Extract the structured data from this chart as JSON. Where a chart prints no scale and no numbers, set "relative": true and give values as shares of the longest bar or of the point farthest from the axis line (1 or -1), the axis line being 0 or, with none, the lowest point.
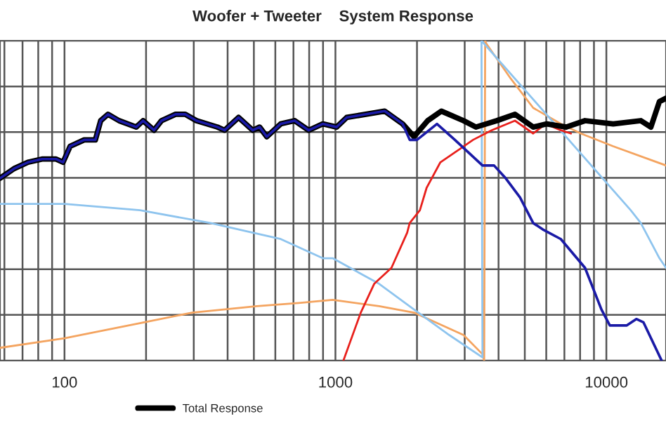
{
  "chart_data": {
    "type": "line",
    "title": "Woofer + Tweeter    System Response",
    "relative": true,
    "log": "x",
    "xlim": [
      57.8,
      16600
    ],
    "xticks": [
      100,
      1000,
      10000
    ],
    "grid": true,
    "legend": "bottom",
    "line_style": "solid",
    "marker": "none",
    "series": [
      {
        "color": "#f4a460",
        "x": [
          57.8,
          100,
          197,
          296,
          513,
          731,
          977,
          1450,
          1950,
          2970,
          3490,
          3540,
          3570,
          3610,
          4450,
          5370,
          6790,
          8050,
          10600,
          16600
        ],
        "values": [
          0.04,
          0.07,
          0.12,
          0.15,
          0.17,
          0.18,
          0.19,
          0.17,
          0.15,
          0.08,
          0.02,
          0,
          1.0,
          0.99,
          0.88,
          0.79,
          0.74,
          0.71,
          0.67,
          0.61
        ]
      },
      {
        "color": "#8ec4ee",
        "x": [
          57.8,
          100,
          190,
          346,
          495,
          628,
          898,
          977,
          1450,
          1950,
          2630,
          3490,
          3460,
          12300,
          13400,
          15700,
          16600
        ],
        "values": [
          0.49,
          0.49,
          0.47,
          0.43,
          0.4,
          0.38,
          0.32,
          0.32,
          0.24,
          0.16,
          0.08,
          0.01,
          1.0,
          0.47,
          0.43,
          0.32,
          0.29
        ]
      },
      {
        "color": "#e8201c",
        "x": [
          1070,
          1240,
          1390,
          1610,
          1840,
          1880,
          2050,
          2170,
          2440,
          2860,
          3220,
          3770,
          4600,
          5370,
          5960,
          6790,
          7400
        ],
        "values": [
          0,
          0.15,
          0.24,
          0.29,
          0.4,
          0.43,
          0.47,
          0.54,
          0.62,
          0.66,
          0.69,
          0.72,
          0.75,
          0.71,
          0.74,
          0.72,
          0.71
        ]
      },
      {
        "color": "#1a1aa6",
        "x": [
          57.8,
          65.1,
          73.3,
          82.6,
          93.1,
          98.8,
          104.9,
          118.2,
          130,
          136,
          144.7,
          159,
          184,
          195,
          214,
          228,
          257,
          279,
          307,
          367,
          390,
          439,
          495,
          525,
          558,
          628,
          707,
          797,
          898,
          1010,
          1100,
          1520,
          1770,
          1880,
          2000,
          2370,
          2760,
          3490,
          3850,
          4250,
          4800,
          5370,
          5830,
          6790,
          8340,
          9590,
          10300,
          11900,
          12900,
          13700,
          16000
        ],
        "values": [
          0.57,
          0.6,
          0.62,
          0.63,
          0.63,
          0.62,
          0.67,
          0.69,
          0.69,
          0.75,
          0.77,
          0.75,
          0.73,
          0.75,
          0.72,
          0.75,
          0.77,
          0.77,
          0.75,
          0.73,
          0.72,
          0.76,
          0.72,
          0.73,
          0.7,
          0.74,
          0.75,
          0.72,
          0.74,
          0.73,
          0.76,
          0.78,
          0.74,
          0.69,
          0.69,
          0.74,
          0.69,
          0.61,
          0.61,
          0.57,
          0.51,
          0.43,
          0.41,
          0.38,
          0.29,
          0.16,
          0.11,
          0.11,
          0.13,
          0.12,
          0
        ]
      },
      {
        "name": "Total Response",
        "color": "#000000",
        "x": [
          57.8,
          65.1,
          73.3,
          82.6,
          93.1,
          98.8,
          104.9,
          118.2,
          130,
          136,
          144.7,
          159,
          184,
          195,
          214,
          228,
          257,
          279,
          307,
          367,
          390,
          439,
          495,
          525,
          558,
          628,
          707,
          797,
          898,
          1010,
          1100,
          1520,
          1770,
          1950,
          2190,
          2460,
          2970,
          3300,
          3940,
          4600,
          5370,
          6030,
          7110,
          8340,
          10600,
          13400,
          14600,
          15700,
          16600
        ],
        "values": [
          0.57,
          0.6,
          0.62,
          0.63,
          0.63,
          0.62,
          0.67,
          0.69,
          0.69,
          0.75,
          0.77,
          0.75,
          0.73,
          0.75,
          0.72,
          0.75,
          0.77,
          0.77,
          0.75,
          0.73,
          0.72,
          0.76,
          0.72,
          0.73,
          0.7,
          0.74,
          0.75,
          0.72,
          0.74,
          0.73,
          0.76,
          0.78,
          0.74,
          0.7,
          0.75,
          0.78,
          0.75,
          0.73,
          0.75,
          0.77,
          0.73,
          0.74,
          0.73,
          0.75,
          0.74,
          0.75,
          0.73,
          0.81,
          0.82
        ]
      }
    ]
  }
}
